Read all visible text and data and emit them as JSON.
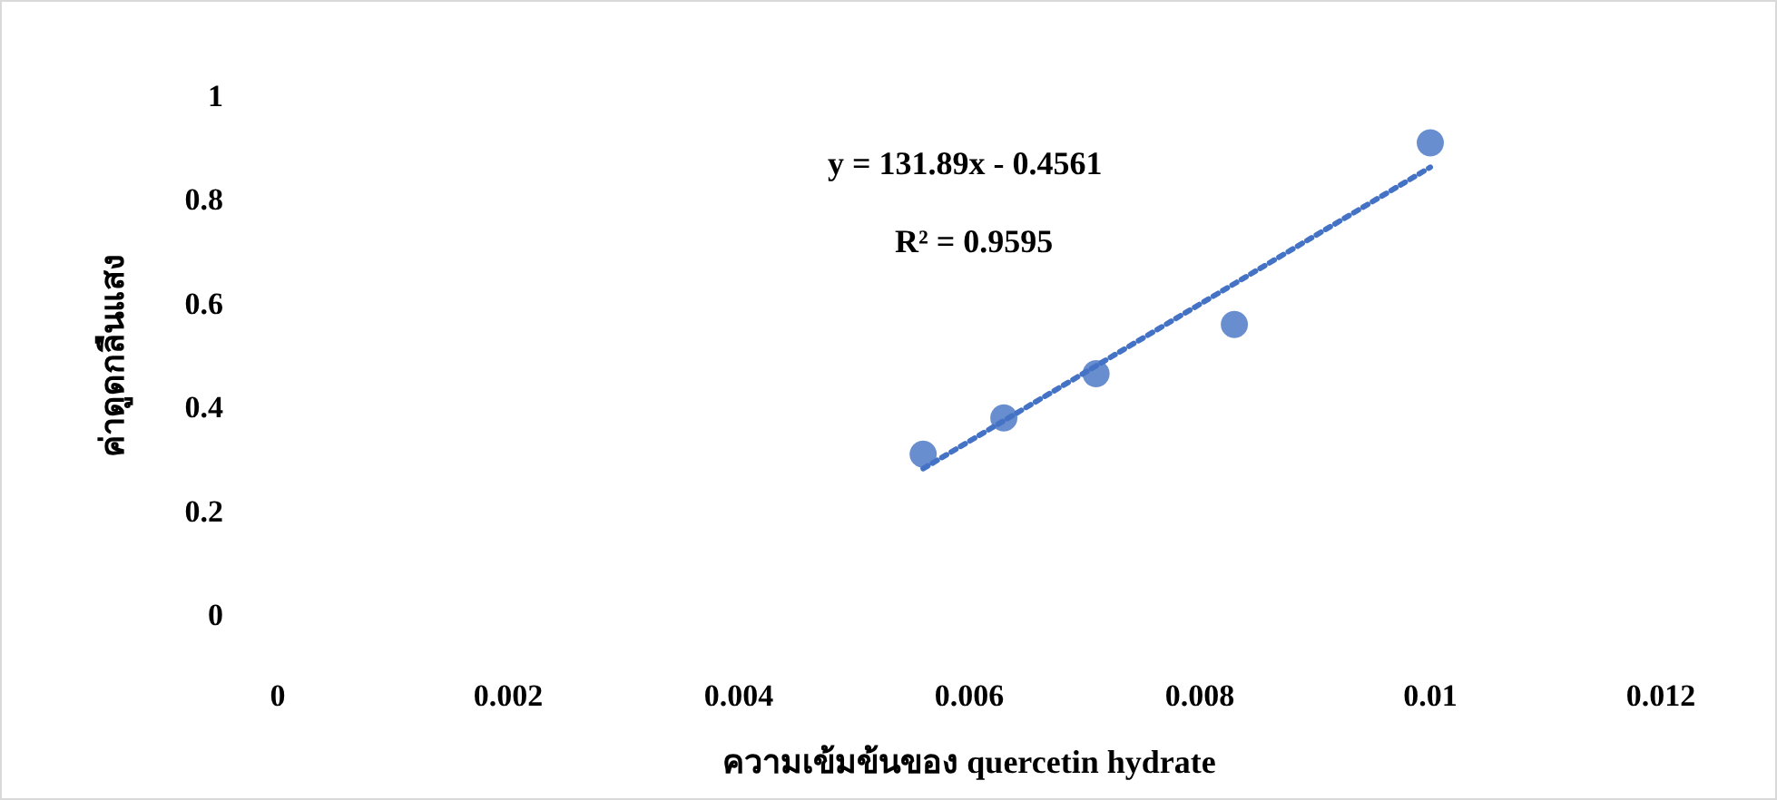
{
  "chart_data": {
    "type": "scatter",
    "xlabel": "ความเข้มข้นของ quercetin hydrate",
    "ylabel": "ค่าดูดกลืนแสง",
    "x": [
      0.0056,
      0.0063,
      0.0071,
      0.0083,
      0.01
    ],
    "series": [
      {
        "color": "#4472c4",
        "values": [
          0.31,
          0.38,
          0.465,
          0.56,
          0.91
        ],
        "marker": "circle"
      },
      {
        "type": "line",
        "color": "#4472c4",
        "x": [
          0.0056,
          0.01
        ],
        "values": [
          0.282,
          0.863
        ],
        "line_style": "dotted",
        "marker": "none"
      }
    ],
    "annotations": [
      "y = 131.89x - 0.4561",
      "R² = 0.9595"
    ],
    "xlim": [
      0,
      0.012
    ],
    "xticks": [
      0,
      0.002,
      0.004,
      0.006,
      0.008,
      0.01,
      0.012
    ],
    "ylim": [
      0,
      1
    ],
    "yticks": [
      0,
      0.2,
      0.4,
      0.6,
      0.8,
      1
    ],
    "grid": false
  }
}
